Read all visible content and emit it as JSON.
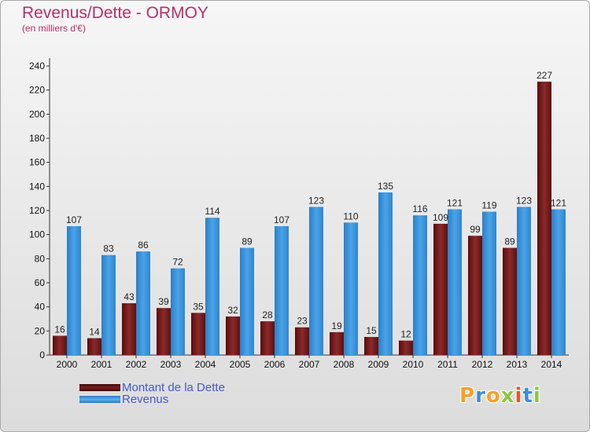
{
  "header": {
    "title": "Revenus/Dette - ORMOY",
    "subtitle": "(en milliers d'€)"
  },
  "legend": {
    "items": [
      {
        "label": "Montant de la Dette",
        "color": "#7b1c1c"
      },
      {
        "label": "Revenus",
        "color": "#3c93dc"
      }
    ]
  },
  "logo": {
    "letters": [
      "P",
      "r",
      "o",
      "x",
      "i",
      "t",
      "i"
    ],
    "colors": [
      "#f2a12b",
      "#3c8fd6",
      "#f2a12b",
      "#8cc63e",
      "#e0592a",
      "#3c8fd6",
      "#8cc63e"
    ]
  },
  "chart_data": {
    "type": "bar",
    "title": "Revenus/Dette - ORMOY",
    "subtitle": "(en milliers d'€)",
    "categories": [
      "2000",
      "2001",
      "2002",
      "2003",
      "2004",
      "2005",
      "2006",
      "2007",
      "2008",
      "2009",
      "2010",
      "2011",
      "2012",
      "2013",
      "2014"
    ],
    "series": [
      {
        "name": "Montant de la Dette",
        "color": "#7b1c1c",
        "values": [
          16,
          14,
          43,
          39,
          35,
          32,
          28,
          23,
          19,
          15,
          12,
          109,
          99,
          89,
          227
        ]
      },
      {
        "name": "Revenus",
        "color": "#3c93dc",
        "values": [
          107,
          83,
          86,
          72,
          114,
          89,
          107,
          123,
          110,
          135,
          116,
          121,
          119,
          123,
          121
        ]
      }
    ],
    "ylim": [
      0,
      240
    ],
    "yticks": [
      0,
      20,
      40,
      60,
      80,
      100,
      120,
      140,
      160,
      180,
      200,
      220,
      240
    ],
    "grid": false,
    "legend_position": "bottom-left"
  }
}
